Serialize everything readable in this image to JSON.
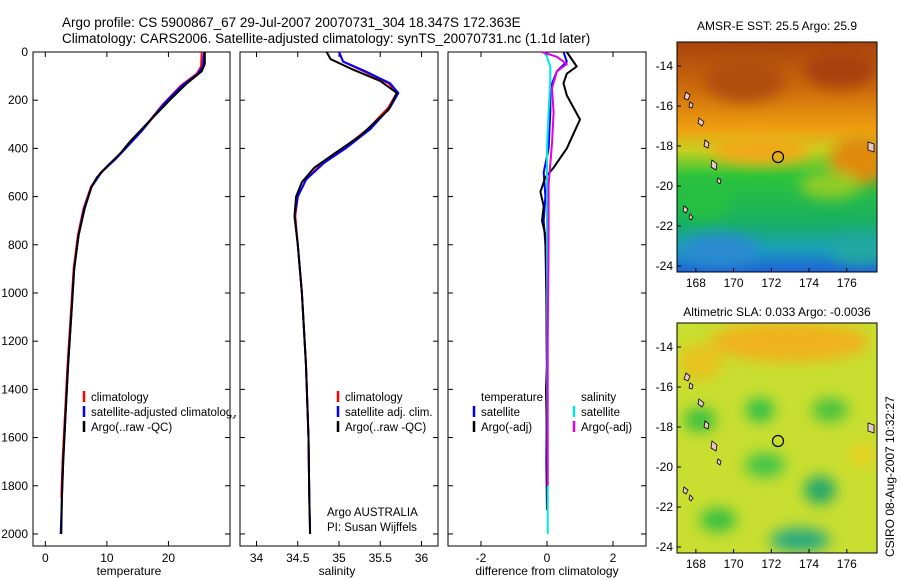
{
  "header": {
    "title_line1": "Argo profile: CS 5900867_67 29-Jul-2007 20070731_304 18.347S 172.363E",
    "title_line2": "Climatology: CARS2006. Satellite-adjusted climatology: synTS_20070731.nc (1.1d later)"
  },
  "colors": {
    "climatology": "#ff0000",
    "satellite": "#0000ff",
    "argo": "#000000",
    "salinity_sat": "#00e5e5",
    "salinity_argo": "#e000e0"
  },
  "chart_data": [
    {
      "type": "line",
      "id": "temperature",
      "xlabel": "temperature",
      "ylabel": "",
      "xlim": [
        -2,
        30
      ],
      "ylim": [
        2050,
        0
      ],
      "xticks": [
        "0",
        "10",
        "20"
      ],
      "xtick_values": [
        0,
        10,
        20
      ],
      "yticks": [
        "0",
        "200",
        "400",
        "600",
        "800",
        "1000",
        "1200",
        "1400",
        "1600",
        "1800",
        "2000"
      ],
      "ytick_values": [
        0,
        200,
        400,
        600,
        800,
        1000,
        1200,
        1400,
        1600,
        1800,
        2000
      ],
      "series": [
        {
          "name": "climatology",
          "color": "#ff0000",
          "points": [
            [
              25.4,
              0
            ],
            [
              25.3,
              60
            ],
            [
              24.6,
              90
            ],
            [
              22,
              140
            ],
            [
              19,
              220
            ],
            [
              15.5,
              330
            ],
            [
              11.5,
              440
            ],
            [
              9,
              500
            ],
            [
              7.4,
              560
            ],
            [
              6.2,
              650
            ],
            [
              5.3,
              760
            ],
            [
              4.6,
              900
            ],
            [
              4.1,
              1100
            ],
            [
              3.6,
              1300
            ],
            [
              3.2,
              1500
            ],
            [
              2.8,
              1700
            ],
            [
              2.6,
              1850
            ]
          ]
        },
        {
          "name": "satellite-adjusted climatology",
          "color": "#0000ff",
          "points": [
            [
              25.8,
              0
            ],
            [
              25.6,
              60
            ],
            [
              24.8,
              90
            ],
            [
              22.2,
              140
            ],
            [
              19.1,
              220
            ],
            [
              15.6,
              330
            ],
            [
              11.6,
              440
            ],
            [
              9.1,
              500
            ],
            [
              7.5,
              560
            ],
            [
              6.3,
              650
            ],
            [
              5.4,
              760
            ],
            [
              4.7,
              900
            ],
            [
              4.2,
              1100
            ],
            [
              3.7,
              1300
            ],
            [
              3.3,
              1500
            ],
            [
              2.9,
              1700
            ],
            [
              2.7,
              1850
            ],
            [
              2.5,
              2000
            ]
          ]
        },
        {
          "name": "Argo(..raw -QC)",
          "color": "#000000",
          "points": [
            [
              25.9,
              0
            ],
            [
              25.9,
              50
            ],
            [
              25.4,
              80
            ],
            [
              23,
              130
            ],
            [
              20.2,
              200
            ],
            [
              16.8,
              290
            ],
            [
              13.8,
              370
            ],
            [
              12.2,
              420
            ],
            [
              10,
              475
            ],
            [
              8.4,
              520
            ],
            [
              7.5,
              560
            ],
            [
              6.4,
              650
            ],
            [
              5.4,
              760
            ],
            [
              4.7,
              900
            ],
            [
              4.2,
              1100
            ],
            [
              3.7,
              1300
            ],
            [
              3.3,
              1500
            ],
            [
              2.9,
              1700
            ],
            [
              2.7,
              1850
            ],
            [
              2.6,
              2000
            ]
          ]
        }
      ],
      "legend": [
        "climatology",
        "satellite-adjusted climatology",
        "Argo(..raw -QC)"
      ]
    },
    {
      "type": "line",
      "id": "salinity",
      "xlabel": "salinity",
      "xlim": [
        33.8,
        36.2
      ],
      "ylim": [
        2050,
        0
      ],
      "xticks": [
        "34",
        "34.5",
        "35",
        "35.5",
        "36"
      ],
      "xtick_values": [
        34,
        34.5,
        35,
        35.5,
        36
      ],
      "series": [
        {
          "name": "climatology",
          "color": "#ff0000",
          "points": [
            [
              35.0,
              0
            ],
            [
              35.05,
              40
            ],
            [
              35.3,
              80
            ],
            [
              35.6,
              130
            ],
            [
              35.7,
              170
            ],
            [
              35.6,
              230
            ],
            [
              35.35,
              320
            ],
            [
              35.05,
              400
            ],
            [
              34.8,
              460
            ],
            [
              34.6,
              530
            ],
            [
              34.5,
              600
            ],
            [
              34.47,
              680
            ],
            [
              34.5,
              800
            ],
            [
              34.55,
              1000
            ],
            [
              34.6,
              1300
            ],
            [
              34.63,
              1600
            ],
            [
              34.64,
              1850
            ]
          ]
        },
        {
          "name": "satellite adj. clim.",
          "color": "#0000ff",
          "points": [
            [
              35.0,
              0
            ],
            [
              35.05,
              40
            ],
            [
              35.32,
              80
            ],
            [
              35.62,
              130
            ],
            [
              35.72,
              170
            ],
            [
              35.62,
              230
            ],
            [
              35.38,
              320
            ],
            [
              35.08,
              400
            ],
            [
              34.82,
              460
            ],
            [
              34.6,
              530
            ],
            [
              34.5,
              600
            ],
            [
              34.46,
              680
            ],
            [
              34.5,
              800
            ],
            [
              34.55,
              1000
            ],
            [
              34.6,
              1300
            ],
            [
              34.63,
              1600
            ],
            [
              34.64,
              1850
            ],
            [
              34.65,
              2000
            ]
          ]
        },
        {
          "name": "Argo(..raw -QC)",
          "color": "#000000",
          "points": [
            [
              34.85,
              0
            ],
            [
              34.9,
              30
            ],
            [
              35.15,
              70
            ],
            [
              35.5,
              120
            ],
            [
              35.7,
              170
            ],
            [
              35.6,
              240
            ],
            [
              35.25,
              350
            ],
            [
              34.95,
              420
            ],
            [
              34.7,
              480
            ],
            [
              34.55,
              540
            ],
            [
              34.48,
              600
            ],
            [
              34.46,
              680
            ],
            [
              34.5,
              800
            ],
            [
              34.55,
              1000
            ],
            [
              34.6,
              1300
            ],
            [
              34.63,
              1600
            ],
            [
              34.64,
              1850
            ],
            [
              34.65,
              2000
            ]
          ]
        }
      ],
      "legend": [
        "climatology",
        "satellite adj. clim.",
        "Argo(..raw -QC)"
      ],
      "annotation": [
        "Argo AUSTRALIA",
        "PI: Susan Wijffels"
      ]
    },
    {
      "type": "line",
      "id": "difference",
      "xlabel": "difference from climatology",
      "xlim": [
        -3,
        3
      ],
      "ylim": [
        2050,
        0
      ],
      "xticks": [
        "-2",
        "0",
        "2"
      ],
      "xtick_values": [
        -2,
        0,
        2
      ],
      "series": [
        {
          "name": "temperature satellite",
          "color": "#0000ff",
          "points": [
            [
              0.5,
              0
            ],
            [
              0.6,
              40
            ],
            [
              0.3,
              80
            ],
            [
              0.1,
              150
            ],
            [
              0.1,
              250
            ],
            [
              0.05,
              400
            ],
            [
              -0.1,
              500
            ],
            [
              -0.05,
              600
            ],
            [
              -0.1,
              700
            ],
            [
              -0.05,
              800
            ],
            [
              -0.02,
              1000
            ],
            [
              0,
              1400
            ],
            [
              -0.02,
              1700
            ],
            [
              0,
              1900
            ]
          ]
        },
        {
          "name": "temperature Argo(-adj)",
          "color": "#000000",
          "points": [
            [
              0.6,
              0
            ],
            [
              0.9,
              60
            ],
            [
              0.6,
              90
            ],
            [
              0.5,
              130
            ],
            [
              0.6,
              180
            ],
            [
              1.0,
              280
            ],
            [
              0.8,
              340
            ],
            [
              0.6,
              400
            ],
            [
              0.4,
              440
            ],
            [
              0.2,
              480
            ],
            [
              -0.05,
              520
            ],
            [
              -0.2,
              580
            ],
            [
              -0.1,
              640
            ],
            [
              -0.15,
              700
            ],
            [
              -0.05,
              760
            ],
            [
              -0.02,
              900
            ],
            [
              0,
              1300
            ],
            [
              -0.03,
              1400
            ],
            [
              0,
              1600
            ],
            [
              0,
              1900
            ]
          ]
        },
        {
          "name": "salinity satellite",
          "color": "#00e5e5",
          "points": [
            [
              -0.1,
              0
            ],
            [
              0,
              20
            ],
            [
              0.1,
              60
            ],
            [
              0.1,
              120
            ],
            [
              0.05,
              250
            ],
            [
              0,
              400
            ],
            [
              0,
              700
            ],
            [
              0.01,
              1000
            ],
            [
              0.01,
              1400
            ],
            [
              0.02,
              1800
            ],
            [
              0.02,
              2000
            ]
          ]
        },
        {
          "name": "salinity Argo(-adj)",
          "color": "#e000e0",
          "points": [
            [
              -0.15,
              0
            ],
            [
              0.3,
              20
            ],
            [
              0.6,
              50
            ],
            [
              0.3,
              80
            ],
            [
              0.15,
              150
            ],
            [
              0.2,
              250
            ],
            [
              0.15,
              380
            ],
            [
              0.05,
              550
            ],
            [
              0.05,
              800
            ],
            [
              0.02,
              1200
            ],
            [
              0.02,
              1600
            ],
            [
              0.02,
              1800
            ]
          ]
        }
      ],
      "legend_headers": [
        "temperature",
        "salinity"
      ],
      "legend_left": [
        "satellite",
        "Argo(-adj)"
      ],
      "legend_right": [
        "satellite",
        "Argo(-adj)"
      ]
    },
    {
      "type": "heatmap",
      "id": "sst-map",
      "title": "AMSR-E SST: 25.5 Argo: 25.9",
      "xticks": [
        "168",
        "170",
        "172",
        "174",
        "176"
      ],
      "xtick_values": [
        168,
        170,
        172,
        174,
        176
      ],
      "yticks": [
        "-14",
        "-16",
        "-18",
        "-20",
        "-22",
        "-24"
      ],
      "ytick_values": [
        -14,
        -16,
        -18,
        -20,
        -22,
        -24
      ],
      "xlim": [
        167,
        177.6
      ],
      "ylim": [
        -24.3,
        -12.8
      ],
      "argo_position": [
        172.363,
        -18.347
      ]
    },
    {
      "type": "heatmap",
      "id": "sla-map",
      "title": "Altimetric SLA: 0.033 Argo: -0.0036",
      "xticks": [
        "168",
        "170",
        "172",
        "174",
        "176"
      ],
      "xtick_values": [
        168,
        170,
        172,
        174,
        176
      ],
      "yticks": [
        "-14",
        "-16",
        "-18",
        "-20",
        "-22",
        "-24"
      ],
      "ytick_values": [
        -14,
        -16,
        -18,
        -20,
        -22,
        -24
      ],
      "xlim": [
        167,
        177.6
      ],
      "ylim": [
        -24.3,
        -12.8
      ],
      "argo_position": [
        172.363,
        -18.347
      ]
    }
  ],
  "footer": {
    "stamp": "CSIRO 08-Aug-2007 10:32:27"
  }
}
